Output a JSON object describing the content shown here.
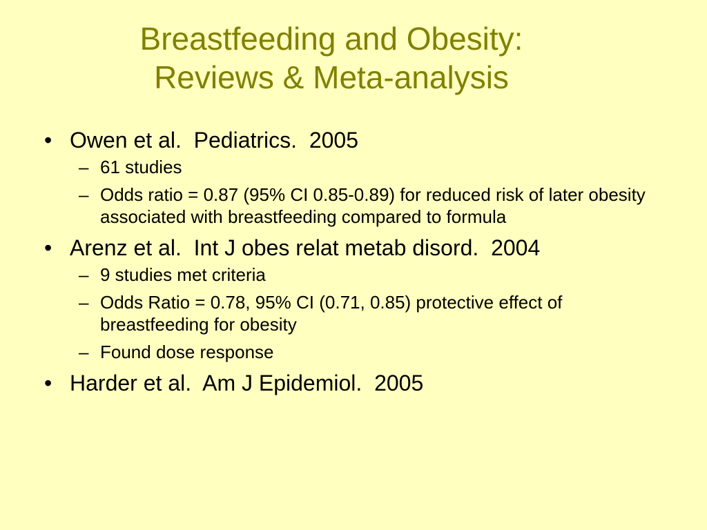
{
  "slide": {
    "background": "#FFFFC0",
    "title_color": "#808000",
    "title_lines": [
      "Breastfeeding and Obesity:",
      "Reviews & Meta-analysis"
    ],
    "bullets": [
      {
        "text": "Owen et al.  Pediatrics.  2005",
        "subitems": [
          "61 studies",
          "Odds ratio = 0.87 (95% CI 0.85-0.89) for reduced risk of later obesity associated with breastfeeding compared to formula"
        ]
      },
      {
        "text": "Arenz et al.  Int J obes relat metab disord.  2004",
        "subitems": [
          "9 studies met criteria",
          "Odds Ratio = 0.78, 95% CI (0.71, 0.85) protective effect of breastfeeding for obesity",
          "Found dose response"
        ]
      },
      {
        "text": "Harder et al.  Am J Epidemiol.  2005",
        "subitems": []
      }
    ]
  }
}
